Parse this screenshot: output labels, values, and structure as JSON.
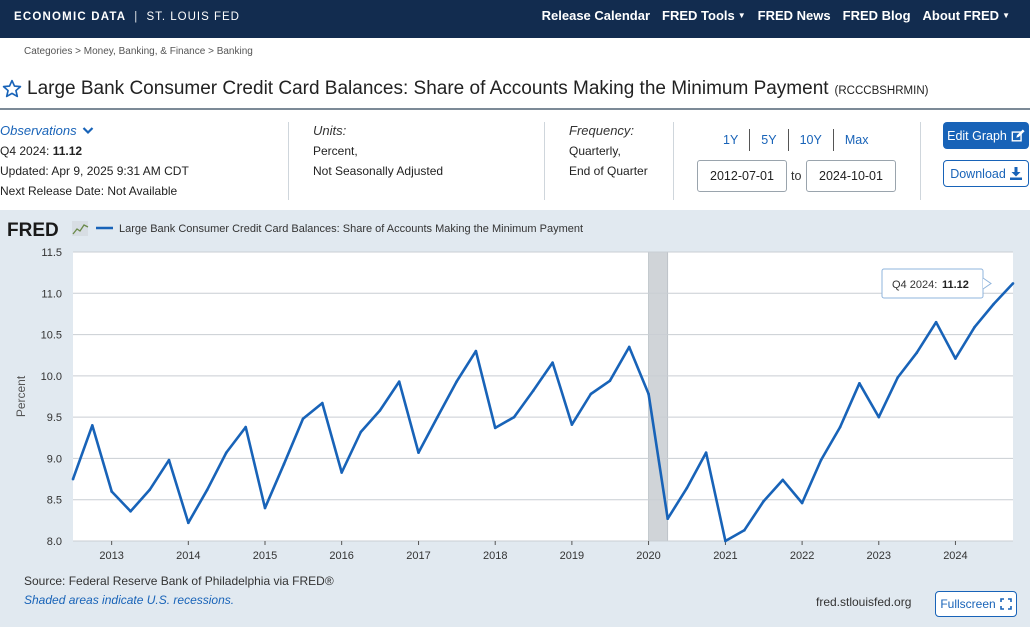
{
  "header": {
    "brand": "ECONOMIC DATA",
    "separator": "|",
    "org": "ST. LOUIS FED",
    "nav": [
      "Release Calendar",
      "FRED Tools",
      "FRED News",
      "FRED Blog",
      "About FRED"
    ]
  },
  "breadcrumb": "Categories > Money, Banking, & Finance > Banking",
  "title": "Large Bank Consumer Credit Card Balances: Share of Accounts Making the Minimum Payment",
  "series_id": "(RCCCBSHRMIN)",
  "observations": {
    "label": "Observations",
    "latest_period": "Q4 2024:",
    "latest_value": "11.12",
    "updated": "Updated: Apr 9, 2025 9:31 AM CDT",
    "next_release": "Next Release Date: Not Available"
  },
  "units": {
    "label": "Units:",
    "line1": "Percent,",
    "line2": "Not Seasonally Adjusted"
  },
  "frequency": {
    "label": "Frequency:",
    "line1": "Quarterly,",
    "line2": "End of Quarter"
  },
  "range_tabs": [
    "1Y",
    "5Y",
    "10Y",
    "Max"
  ],
  "date_from": "2012-07-01",
  "date_to": "2024-10-01",
  "to_label": "to",
  "buttons": {
    "edit": "Edit Graph",
    "download": "Download",
    "fullscreen": "Fullscreen"
  },
  "footer": {
    "source": "Source: Federal Reserve Bank of Philadelphia via FRED®",
    "recession_note": "Shaded areas indicate U.S. recessions.",
    "site": "fred.stlouisfed.org"
  },
  "colors": {
    "navy": "#122c4f",
    "accent": "#1863b8",
    "panel": "#e1e9f0",
    "recession": "#d0d4d8"
  },
  "icons": [
    "star-icon",
    "chevron-down-icon",
    "edit-icon",
    "download-icon",
    "fullscreen-icon",
    "fred-logo"
  ],
  "chart_data": {
    "type": "line",
    "logo": "FRED",
    "ylabel": "Percent",
    "ylim": [
      8.0,
      11.5
    ],
    "yticks": [
      "8.0",
      "8.5",
      "9.0",
      "9.5",
      "10.0",
      "10.5",
      "11.0",
      "11.5"
    ],
    "xlim": [
      "2012-07-01",
      "2024-10-01"
    ],
    "xticks": [
      "2013",
      "2014",
      "2015",
      "2016",
      "2017",
      "2018",
      "2019",
      "2020",
      "2021",
      "2022",
      "2023",
      "2024"
    ],
    "grid": true,
    "legend_position": "top",
    "recession": [
      "2020-01-01",
      "2020-04-01"
    ],
    "tooltip": {
      "label": "Q4 2024:",
      "value": "11.12"
    },
    "series": [
      {
        "name": "Large Bank Consumer Credit Card Balances: Share of Accounts Making the Minimum Payment",
        "x": [
          "2012-07-01",
          "2012-10-01",
          "2013-01-01",
          "2013-04-01",
          "2013-07-01",
          "2013-10-01",
          "2014-01-01",
          "2014-04-01",
          "2014-07-01",
          "2014-10-01",
          "2015-01-01",
          "2015-04-01",
          "2015-07-01",
          "2015-10-01",
          "2016-01-01",
          "2016-04-01",
          "2016-07-01",
          "2016-10-01",
          "2017-01-01",
          "2017-04-01",
          "2017-07-01",
          "2017-10-01",
          "2018-01-01",
          "2018-04-01",
          "2018-07-01",
          "2018-10-01",
          "2019-01-01",
          "2019-04-01",
          "2019-07-01",
          "2019-10-01",
          "2020-01-01",
          "2020-04-01",
          "2020-07-01",
          "2020-10-01",
          "2021-01-01",
          "2021-04-01",
          "2021-07-01",
          "2021-10-01",
          "2022-01-01",
          "2022-04-01",
          "2022-07-01",
          "2022-10-01",
          "2023-01-01",
          "2023-04-01",
          "2023-07-01",
          "2023-10-01",
          "2024-01-01",
          "2024-04-01",
          "2024-07-01",
          "2024-10-01"
        ],
        "values": [
          8.75,
          9.4,
          8.6,
          8.36,
          8.62,
          8.98,
          8.22,
          8.62,
          9.07,
          9.38,
          8.4,
          8.93,
          9.48,
          9.67,
          8.83,
          9.32,
          9.58,
          9.93,
          9.07,
          9.5,
          9.93,
          10.3,
          9.37,
          9.5,
          9.82,
          10.16,
          9.41,
          9.78,
          9.94,
          10.35,
          9.78,
          8.27,
          8.64,
          9.07,
          8.0,
          8.13,
          8.48,
          8.74,
          8.46,
          8.98,
          9.38,
          9.91,
          9.5,
          9.98,
          10.28,
          10.65,
          10.21,
          10.59,
          10.87,
          11.12
        ]
      }
    ]
  }
}
